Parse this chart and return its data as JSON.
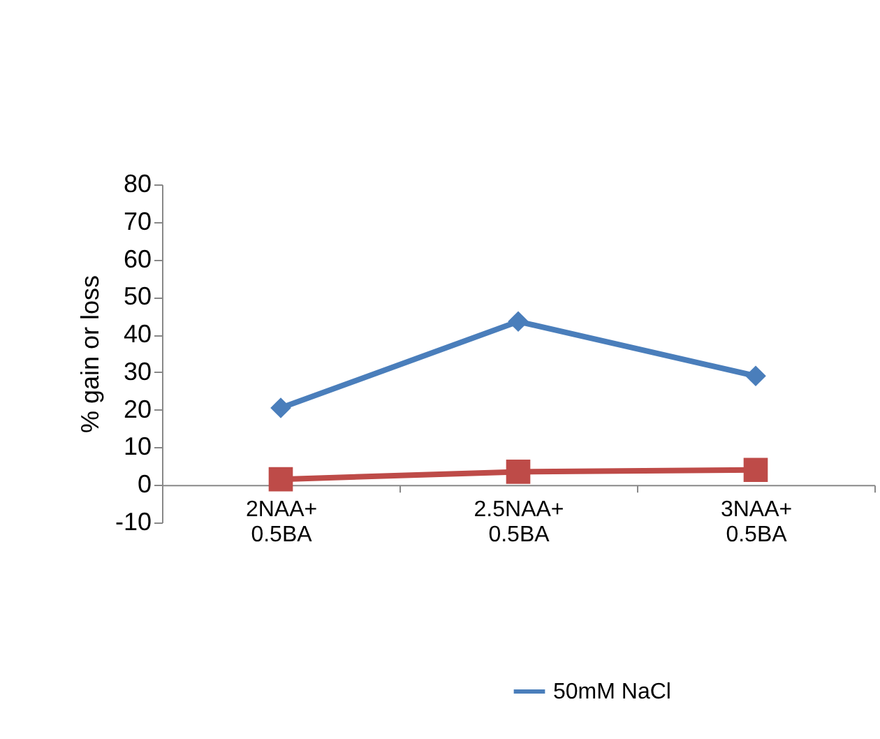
{
  "chart_data": {
    "type": "line",
    "ylabel": "% gain or loss",
    "categories": [
      "2NAA+\n0.5BA",
      "2.5NAA+\n0.5BA",
      "3NAA+\n0.5BA"
    ],
    "series": [
      {
        "name": "50mM NaCl",
        "color": "#4a7ebb",
        "marker": "diamond",
        "values": [
          20.5,
          43.5,
          29
        ]
      },
      {
        "color": "#be4b48",
        "marker": "square",
        "values": [
          1.5,
          3.5,
          4
        ]
      }
    ],
    "ylim": [
      -10,
      80
    ],
    "yticks": [
      -10,
      0,
      10,
      20,
      30,
      40,
      50,
      60,
      70,
      80
    ],
    "grid": false,
    "legend": "bottom",
    "line_style": "solid"
  }
}
